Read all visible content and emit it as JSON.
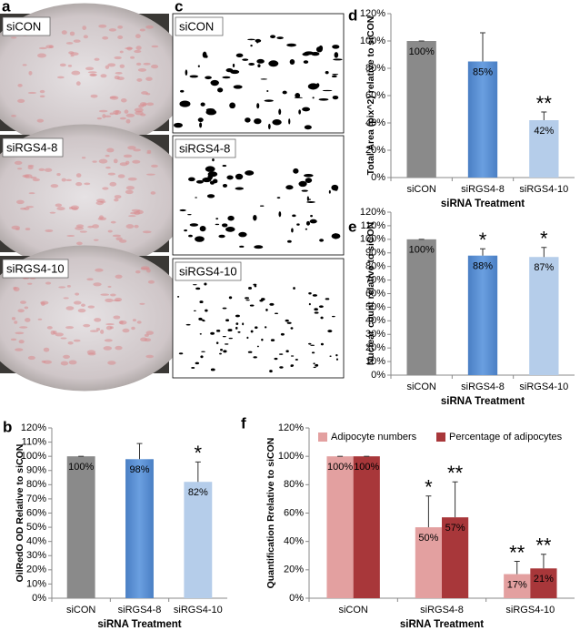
{
  "images": {
    "a": {
      "panel_label": "a",
      "labels": [
        "siCON",
        "siRGS4-8",
        "siRGS4-10"
      ]
    },
    "c": {
      "panel_label": "c",
      "labels": [
        "siCON",
        "siRGS4-8",
        "siRGS4-10"
      ]
    }
  },
  "chart_data": [
    {
      "type": "bar",
      "panel_label": "d",
      "y_label": "Total Area (pix^2) relative to  siCON",
      "x_label": "siRNA Treatment",
      "categories": [
        "siCON",
        "siRGS4-8",
        "siRGS4-10"
      ],
      "values": [
        100,
        85,
        42
      ],
      "errors": [
        0,
        21,
        6
      ],
      "value_labels": [
        "100%",
        "85%",
        "42%"
      ],
      "annotations": [
        null,
        null,
        "**"
      ],
      "colors": [
        "#8a8a8a",
        "#5a8fd4",
        "#b5cdea"
      ],
      "ylim": [
        0,
        120
      ],
      "yticks": [
        {
          "value": 0,
          "label": "0%"
        },
        {
          "value": 20,
          "label": "20%"
        },
        {
          "value": 40,
          "label": "40%"
        },
        {
          "value": 60,
          "label": "60%"
        },
        {
          "value": 80,
          "label": "80%"
        },
        {
          "value": 100,
          "label": "100%"
        },
        {
          "value": 120,
          "label": "120%"
        }
      ],
      "grid": false
    },
    {
      "type": "bar",
      "panel_label": "e",
      "y_label": "Nuclear count relative to  siCON",
      "x_label": "siRNA Treatment",
      "categories": [
        "siCON",
        "siRGS4-8",
        "siRGS4-10"
      ],
      "values": [
        100,
        88,
        87
      ],
      "errors": [
        0,
        5,
        7
      ],
      "value_labels": [
        "100%",
        "88%",
        "87%"
      ],
      "annotations": [
        null,
        "*",
        "*"
      ],
      "colors": [
        "#8a8a8a",
        "#5a8fd4",
        "#b5cdea"
      ],
      "ylim": [
        0,
        120
      ],
      "yticks": [
        {
          "value": 0,
          "label": "0%"
        },
        {
          "value": 10,
          "label": "10%"
        },
        {
          "value": 20,
          "label": "20%"
        },
        {
          "value": 30,
          "label": "30%"
        },
        {
          "value": 40,
          "label": "40%"
        },
        {
          "value": 50,
          "label": "50%"
        },
        {
          "value": 60,
          "label": "60%"
        },
        {
          "value": 70,
          "label": "70%"
        },
        {
          "value": 80,
          "label": "80%"
        },
        {
          "value": 90,
          "label": "90%"
        },
        {
          "value": 100,
          "label": "100%"
        },
        {
          "value": 110,
          "label": "110%"
        },
        {
          "value": 120,
          "label": "120%"
        }
      ],
      "grid": false
    },
    {
      "type": "bar",
      "panel_label": "b",
      "y_label": "OilRedO OD Relative to  siCON",
      "x_label": "siRNA Treatment",
      "categories": [
        "siCON",
        "siRGS4-8",
        "siRGS4-10"
      ],
      "values": [
        100,
        98,
        82
      ],
      "errors": [
        0,
        11,
        14
      ],
      "value_labels": [
        "100%",
        "98%",
        "82%"
      ],
      "annotations": [
        null,
        null,
        "*"
      ],
      "colors": [
        "#8a8a8a",
        "#5a8fd4",
        "#b5cdea"
      ],
      "ylim": [
        0,
        120
      ],
      "yticks": [
        {
          "value": 0,
          "label": "0%"
        },
        {
          "value": 10,
          "label": "10%"
        },
        {
          "value": 20,
          "label": "20%"
        },
        {
          "value": 30,
          "label": "30%"
        },
        {
          "value": 40,
          "label": "40%"
        },
        {
          "value": 50,
          "label": "50%"
        },
        {
          "value": 60,
          "label": "60%"
        },
        {
          "value": 70,
          "label": "70%"
        },
        {
          "value": 80,
          "label": "80%"
        },
        {
          "value": 90,
          "label": "90%"
        },
        {
          "value": 100,
          "label": "100%"
        },
        {
          "value": 110,
          "label": "110%"
        },
        {
          "value": 120,
          "label": "120%"
        }
      ],
      "grid": false
    },
    {
      "type": "grouped_bar",
      "panel_label": "f",
      "y_label": "Quantification Rrelative to  siCON",
      "x_label": "siRNA Treatment",
      "categories": [
        "siCON",
        "siRGS4-8",
        "siRGS4-10"
      ],
      "series": [
        {
          "name": "Adipocyte numbers",
          "color": "#e3a0a0",
          "values": [
            100,
            50,
            17
          ],
          "errors": [
            0,
            22,
            9
          ],
          "value_labels": [
            "100%",
            "50%",
            "17%"
          ],
          "annotations": [
            null,
            "*",
            "**"
          ]
        },
        {
          "name": "Percentage of adipocytes",
          "color": "#a8373a",
          "values": [
            100,
            57,
            21
          ],
          "errors": [
            0,
            25,
            10
          ],
          "value_labels": [
            "100%",
            "57%",
            "21%"
          ],
          "annotations": [
            null,
            "**",
            "**"
          ]
        }
      ],
      "ylim": [
        0,
        120
      ],
      "yticks": [
        {
          "value": 0,
          "label": "0%"
        },
        {
          "value": 20,
          "label": "20%"
        },
        {
          "value": 40,
          "label": "40%"
        },
        {
          "value": 60,
          "label": "60%"
        },
        {
          "value": 80,
          "label": "80%"
        },
        {
          "value": 100,
          "label": "100%"
        },
        {
          "value": 120,
          "label": "120%"
        }
      ],
      "legend": "top-left",
      "grid": false
    }
  ]
}
